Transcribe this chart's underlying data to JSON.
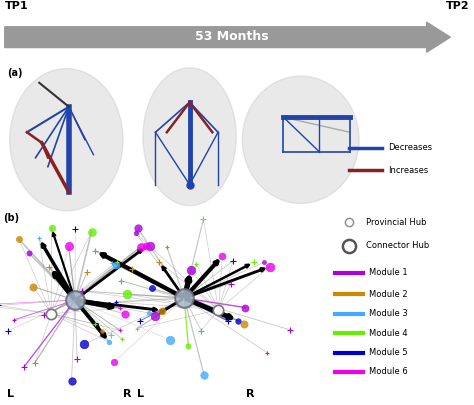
{
  "title_tp1": "TP1",
  "title_tp2": "TP2",
  "arrow_label": "53 Months",
  "panel_a_label": "(a)",
  "panel_b_label": "(b)",
  "bg_color": "#ffffff",
  "arrow_color": "#999999",
  "legend_decreases_color": "#2244aa",
  "legend_increases_color": "#882222",
  "module_colors": [
    "#aa00dd",
    "#cc8800",
    "#44aaff",
    "#66ee00",
    "#0000cc",
    "#ee00ee"
  ],
  "module_labels": [
    "Module 1",
    "Module 2",
    "Module 3",
    "Module 4",
    "Module 5",
    "Module 6"
  ],
  "hub_labels": [
    "Provincial Hub",
    "Connector Hub"
  ]
}
